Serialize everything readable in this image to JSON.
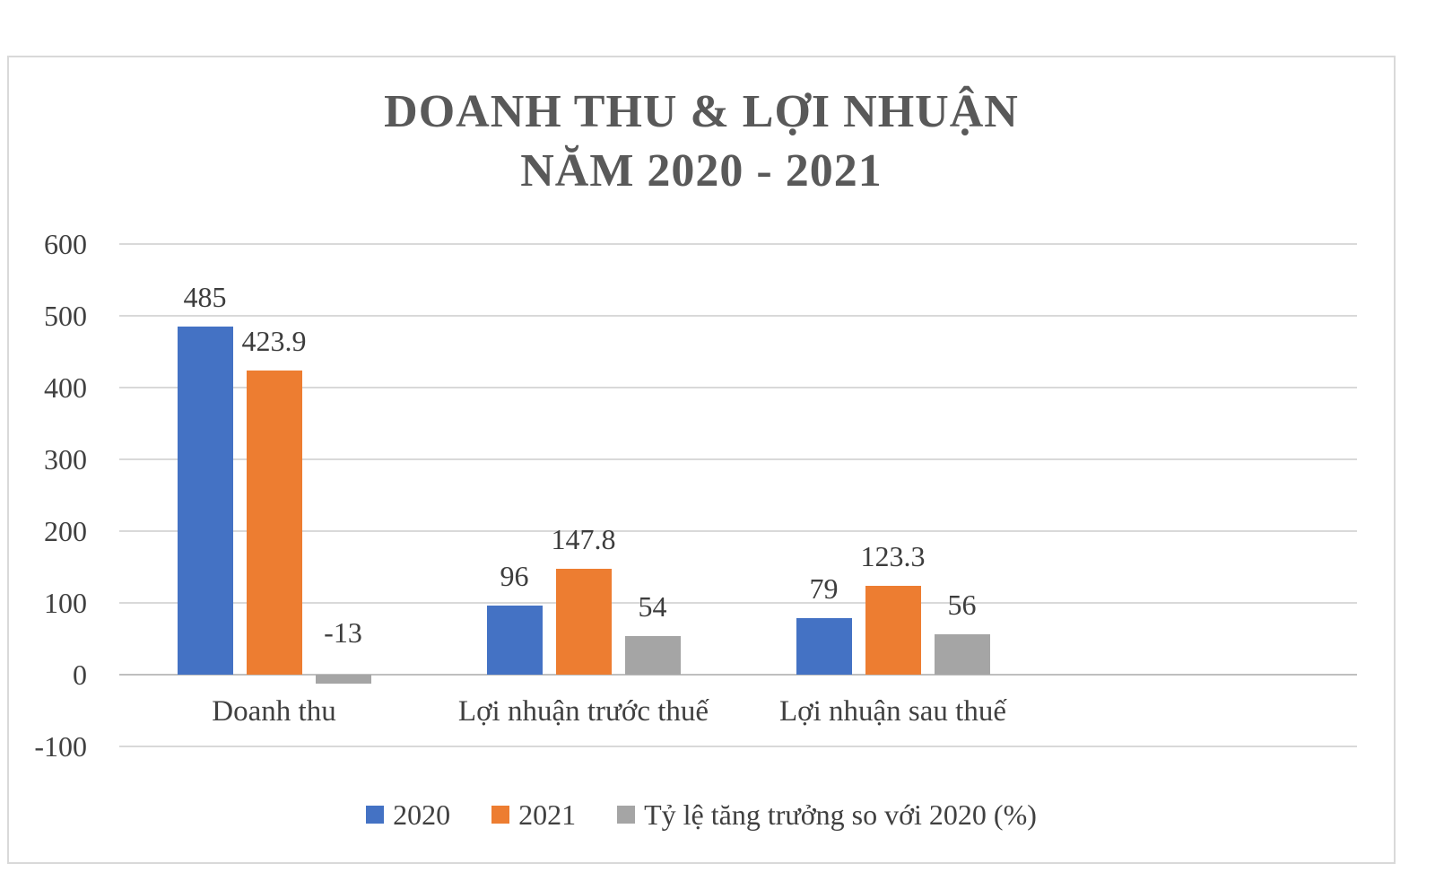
{
  "chart_data": {
    "type": "bar",
    "title_lines": [
      "DOANH THU & LỢI NHUẬN",
      "NĂM 2020 - 2021"
    ],
    "categories": [
      "Doanh thu",
      "Lợi nhuận trước thuế",
      "Lợi nhuận sau thuế"
    ],
    "series": [
      {
        "name": "2020",
        "color": "#4472C4",
        "values": [
          485,
          96,
          79
        ]
      },
      {
        "name": "2021",
        "color": "#ED7D31",
        "values": [
          423.9,
          147.8,
          123.3
        ]
      },
      {
        "name": "Tỷ lệ tăng trưởng so với 2020 (%)",
        "color": "#A5A5A5",
        "values": [
          -13,
          54,
          56
        ]
      }
    ],
    "y_ticks": [
      600,
      500,
      400,
      300,
      200,
      100,
      0,
      -100
    ],
    "ylim": [
      -100,
      600
    ],
    "grid": true,
    "legend_position": "bottom",
    "category_slots": 4
  },
  "colors": {
    "grid": "#D9D9D9",
    "zero_line": "#BFBFBF",
    "border": "#D9D9D9",
    "title": "#595959",
    "text": "#404040",
    "background": "#FFFFFF"
  }
}
